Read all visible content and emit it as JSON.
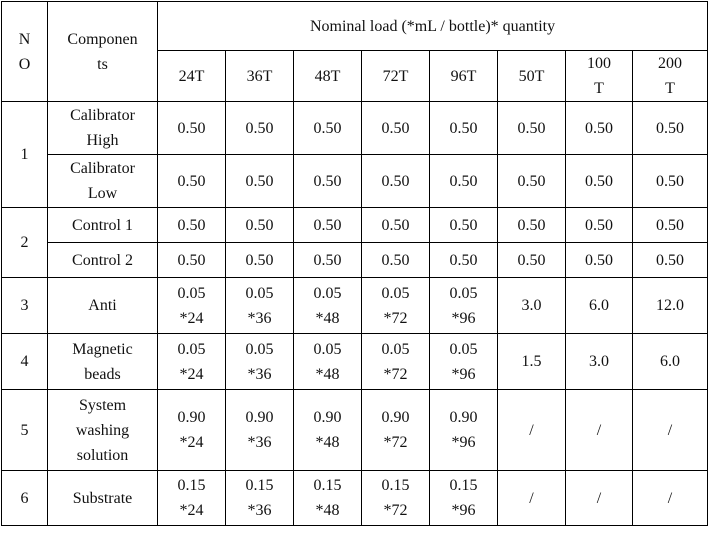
{
  "table": {
    "header": {
      "no": "N\nO",
      "component": "Componen\nts",
      "group": "Nominal load (*mL / bottle)* quantity",
      "sizes": [
        "24T",
        "36T",
        "48T",
        "72T",
        "96T",
        "50T",
        "100\nT",
        "200\nT"
      ]
    },
    "rows": [
      {
        "no": "1",
        "name": "Calibrator\nHigh",
        "values": [
          "0.50",
          "0.50",
          "0.50",
          "0.50",
          "0.50",
          "0.50",
          "0.50",
          "0.50"
        ]
      },
      {
        "name": "Calibrator\nLow",
        "values": [
          "0.50",
          "0.50",
          "0.50",
          "0.50",
          "0.50",
          "0.50",
          "0.50",
          "0.50"
        ]
      },
      {
        "no": "2",
        "name": "Control 1",
        "values": [
          "0.50",
          "0.50",
          "0.50",
          "0.50",
          "0.50",
          "0.50",
          "0.50",
          "0.50"
        ]
      },
      {
        "name": "Control 2",
        "values": [
          "0.50",
          "0.50",
          "0.50",
          "0.50",
          "0.50",
          "0.50",
          "0.50",
          "0.50"
        ]
      },
      {
        "no": "3",
        "name": "Anti",
        "values": [
          "0.05\n*24",
          "0.05\n*36",
          "0.05\n*48",
          "0.05\n*72",
          "0.05\n*96",
          "3.0",
          "6.0",
          "12.0"
        ]
      },
      {
        "no": "4",
        "name": "Magnetic\nbeads",
        "values": [
          "0.05\n*24",
          "0.05\n*36",
          "0.05\n*48",
          "0.05\n*72",
          "0.05\n*96",
          "1.5",
          "3.0",
          "6.0"
        ]
      },
      {
        "no": "5",
        "name": "System\nwashing\nsolution",
        "values": [
          "0.90\n*24",
          "0.90\n*36",
          "0.90\n*48",
          "0.90\n*72",
          "0.90\n*96",
          "/",
          "/",
          "/"
        ]
      },
      {
        "no": "6",
        "name": "Substrate",
        "values": [
          "0.15\n*24",
          "0.15\n*36",
          "0.15\n*48",
          "0.15\n*72",
          "0.15\n*96",
          "/",
          "/",
          "/"
        ]
      }
    ]
  }
}
